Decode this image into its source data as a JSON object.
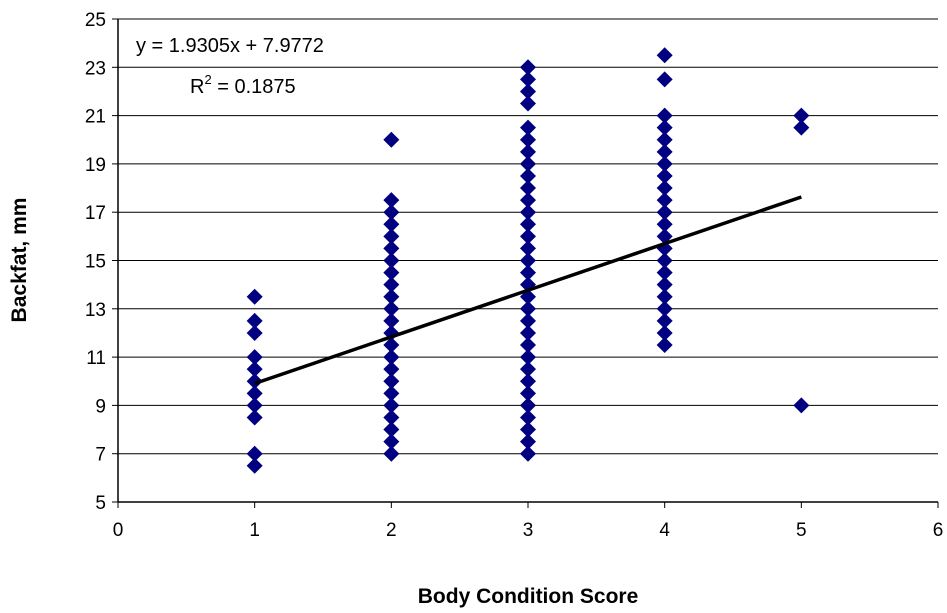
{
  "chart_data": {
    "type": "scatter",
    "title": "",
    "xlabel": "Body Condition Score",
    "ylabel": "Backfat, mm",
    "xlim": [
      0,
      6
    ],
    "ylim": [
      5,
      25
    ],
    "x_ticks": [
      "0",
      "1",
      "2",
      "3",
      "4",
      "5",
      "6"
    ],
    "y_ticks": [
      "5",
      "7",
      "9",
      "11",
      "13",
      "15",
      "17",
      "19",
      "21",
      "23",
      "25"
    ],
    "grid": "horizontal",
    "legend": "none",
    "marker_color": "#000080",
    "trendline_color": "#000000",
    "series": [
      {
        "marker": "diamond",
        "points": [
          [
            1,
            6.5
          ],
          [
            1,
            7.0
          ],
          [
            1,
            8.5
          ],
          [
            1,
            9.0
          ],
          [
            1,
            9.5
          ],
          [
            1,
            10.0
          ],
          [
            1,
            10.5
          ],
          [
            1,
            11.0
          ],
          [
            1,
            12.0
          ],
          [
            1,
            12.5
          ],
          [
            1,
            13.5
          ],
          [
            2,
            7.0
          ],
          [
            2,
            7.5
          ],
          [
            2,
            8.0
          ],
          [
            2,
            8.5
          ],
          [
            2,
            9.0
          ],
          [
            2,
            9.5
          ],
          [
            2,
            10.0
          ],
          [
            2,
            10.5
          ],
          [
            2,
            11.0
          ],
          [
            2,
            11.5
          ],
          [
            2,
            12.0
          ],
          [
            2,
            12.5
          ],
          [
            2,
            13.0
          ],
          [
            2,
            13.5
          ],
          [
            2,
            14.0
          ],
          [
            2,
            14.5
          ],
          [
            2,
            15.0
          ],
          [
            2,
            15.5
          ],
          [
            2,
            16.0
          ],
          [
            2,
            16.5
          ],
          [
            2,
            17.0
          ],
          [
            2,
            17.5
          ],
          [
            2,
            20.0
          ],
          [
            3,
            7.0
          ],
          [
            3,
            7.5
          ],
          [
            3,
            8.0
          ],
          [
            3,
            8.5
          ],
          [
            3,
            9.0
          ],
          [
            3,
            9.5
          ],
          [
            3,
            10.0
          ],
          [
            3,
            10.5
          ],
          [
            3,
            11.0
          ],
          [
            3,
            11.5
          ],
          [
            3,
            12.0
          ],
          [
            3,
            12.5
          ],
          [
            3,
            13.0
          ],
          [
            3,
            13.5
          ],
          [
            3,
            14.0
          ],
          [
            3,
            14.5
          ],
          [
            3,
            15.0
          ],
          [
            3,
            15.5
          ],
          [
            3,
            16.0
          ],
          [
            3,
            16.5
          ],
          [
            3,
            17.0
          ],
          [
            3,
            17.5
          ],
          [
            3,
            18.0
          ],
          [
            3,
            18.5
          ],
          [
            3,
            19.0
          ],
          [
            3,
            19.5
          ],
          [
            3,
            20.0
          ],
          [
            3,
            20.5
          ],
          [
            3,
            21.5
          ],
          [
            3,
            22.0
          ],
          [
            3,
            22.5
          ],
          [
            3,
            23.0
          ],
          [
            4,
            11.5
          ],
          [
            4,
            12.0
          ],
          [
            4,
            12.5
          ],
          [
            4,
            13.0
          ],
          [
            4,
            13.5
          ],
          [
            4,
            14.0
          ],
          [
            4,
            14.5
          ],
          [
            4,
            15.0
          ],
          [
            4,
            15.5
          ],
          [
            4,
            16.0
          ],
          [
            4,
            16.5
          ],
          [
            4,
            17.0
          ],
          [
            4,
            17.5
          ],
          [
            4,
            18.0
          ],
          [
            4,
            18.5
          ],
          [
            4,
            19.0
          ],
          [
            4,
            19.5
          ],
          [
            4,
            20.0
          ],
          [
            4,
            20.5
          ],
          [
            4,
            21.0
          ],
          [
            4,
            22.5
          ],
          [
            4,
            23.5
          ],
          [
            5,
            9.0
          ],
          [
            5,
            20.5
          ],
          [
            5,
            21.0
          ]
        ]
      }
    ],
    "trendline": {
      "slope": 1.9305,
      "intercept": 7.9772,
      "x_range": [
        1,
        5
      ]
    },
    "annotations": {
      "equation": "y = 1.9305x + 7.9772",
      "r2_prefix": "R",
      "r2_sup": "2",
      "r2_value": " = 0.1875"
    }
  }
}
